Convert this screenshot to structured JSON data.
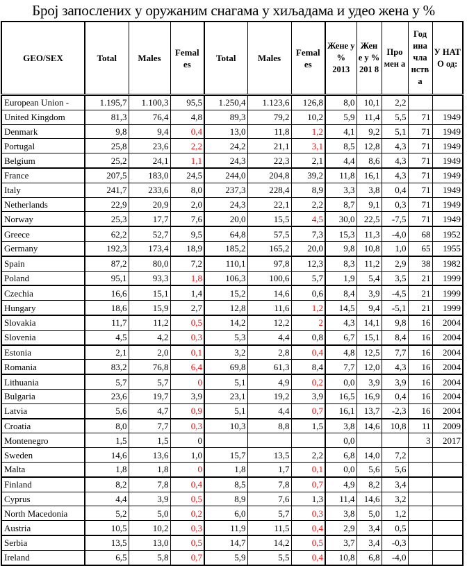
{
  "title": "Број запослених у оружаним снагама у хиљадама и удео жена у %",
  "highlight_color": "#ff0000",
  "columns": [
    "GEO/SEX",
    "Total",
    "Males",
    "Femal es",
    "Total",
    "Males",
    "Femal es",
    "Жене у % 2013",
    "Жен е у % 201 8",
    "Про мен а",
    "Год ина чла нств а",
    "У НАТ О од:"
  ],
  "rows": [
    {
      "cells": [
        "European Union -",
        "1.195,7",
        "1.100,3",
        "95,5",
        "1.250,4",
        "1.123,6",
        "126,8",
        "8,0",
        "10,1",
        "2,2",
        "",
        ""
      ],
      "red": []
    },
    {
      "cells": [
        "United Kingdom",
        "81,3",
        "76,4",
        "4,8",
        "89,3",
        "79,2",
        "10,2",
        "5,9",
        "11,4",
        "5,5",
        "71",
        "1949"
      ],
      "red": []
    },
    {
      "cells": [
        "Denmark",
        "9,8",
        "9,4",
        "0,4",
        "13,0",
        "11,8",
        "1,2",
        "4,1",
        "9,2",
        "5,1",
        "71",
        "1949"
      ],
      "red": [
        3,
        6
      ]
    },
    {
      "cells": [
        "Portugal",
        "25,8",
        "23,6",
        "2,2",
        "24,2",
        "21,1",
        "3,1",
        "8,5",
        "12,8",
        "4,3",
        "71",
        "1949"
      ],
      "red": [
        3,
        6
      ]
    },
    {
      "cells": [
        "Belgium",
        "25,2",
        "24,1",
        "1,1",
        "24,3",
        "22,3",
        "2,1",
        "4,4",
        "8,6",
        "4,3",
        "71",
        "1949"
      ],
      "red": [
        3
      ]
    },
    {
      "cells": [
        "France",
        "207,5",
        "183,0",
        "24,5",
        "244,0",
        "204,8",
        "39,2",
        "11,8",
        "16,1",
        "4,3",
        "71",
        "1949"
      ],
      "red": []
    },
    {
      "cells": [
        "Italy",
        "241,7",
        "233,6",
        "8,0",
        "237,3",
        "228,4",
        "8,9",
        "3,3",
        "3,8",
        "0,4",
        "71",
        "1949"
      ],
      "red": []
    },
    {
      "cells": [
        "Netherlands",
        "22,9",
        "20,9",
        "2,0",
        "24,3",
        "22,1",
        "2,2",
        "8,7",
        "9,1",
        "0,3",
        "71",
        "1949"
      ],
      "red": []
    },
    {
      "cells": [
        "Norway",
        "25,3",
        "17,7",
        "7,6",
        "20,0",
        "15,5",
        "4,5",
        "30,0",
        "22,5",
        "-7,5",
        "71",
        "1949"
      ],
      "red": [
        6
      ]
    },
    {
      "cells": [
        "Greece",
        "62,2",
        "52,7",
        "9,5",
        "64,8",
        "57,5",
        "7,3",
        "15,3",
        "11,3",
        "-4,0",
        "68",
        "1952"
      ],
      "red": []
    },
    {
      "cells": [
        "Germany",
        "192,3",
        "173,4",
        "18,9",
        "185,2",
        "165,2",
        "20,0",
        "9,8",
        "10,8",
        "1,0",
        "65",
        "1955"
      ],
      "red": []
    },
    {
      "cells": [
        "Spain",
        "87,2",
        "80,0",
        "7,2",
        "110,1",
        "97,8",
        "12,3",
        "8,3",
        "11,2",
        "2,9",
        "38",
        "1982"
      ],
      "red": []
    },
    {
      "cells": [
        "Poland",
        "95,1",
        "93,3",
        "1,8",
        "106,3",
        "100,6",
        "5,7",
        "1,9",
        "5,4",
        "3,5",
        "21",
        "1999"
      ],
      "red": [
        3
      ]
    },
    {
      "cells": [
        "Czechia",
        "16,6",
        "15,1",
        "1,4",
        "15,2",
        "14,6",
        "0,6",
        "8,4",
        "3,9",
        "-4,5",
        "21",
        "1999"
      ],
      "red": []
    },
    {
      "cells": [
        "Hungary",
        "18,6",
        "15,9",
        "2,7",
        "12,8",
        "11,6",
        "1,2",
        "14,5",
        "9,4",
        "-5,1",
        "21",
        "1999"
      ],
      "red": [
        6
      ]
    },
    {
      "cells": [
        "Slovakia",
        "11,7",
        "11,2",
        "0,5",
        "14,2",
        "12,2",
        "2",
        "4,3",
        "14,1",
        "9,8",
        "16",
        "2004"
      ],
      "red": [
        3,
        6
      ]
    },
    {
      "cells": [
        "Slovenia",
        "4,5",
        "4,2",
        "0,3",
        "5,3",
        "4,4",
        "0,8",
        "6,7",
        "15,1",
        "8,4",
        "16",
        "2004"
      ],
      "red": [
        3
      ]
    },
    {
      "cells": [
        "Estonia",
        "2,1",
        "2,0",
        "0,1",
        "3,2",
        "2,8",
        "0,4",
        "4,8",
        "12,5",
        "7,7",
        "16",
        "2004"
      ],
      "red": [
        3,
        6
      ]
    },
    {
      "cells": [
        "Romania",
        "83,2",
        "76,8",
        "6,4",
        "69,8",
        "61,3",
        "8,4",
        "7,7",
        "12,0",
        "4,3",
        "16",
        "2004"
      ],
      "red": [
        3
      ]
    },
    {
      "cells": [
        "Lithuania",
        "5,7",
        "5,7",
        "0",
        "5,1",
        "4,9",
        "0,2",
        "0,0",
        "3,9",
        "3,9",
        "16",
        "2004"
      ],
      "red": [
        3,
        6
      ]
    },
    {
      "cells": [
        "Bulgaria",
        "23,6",
        "19,7",
        "3,9",
        "23,1",
        "19,2",
        "3,9",
        "16,5",
        "16,9",
        "0,4",
        "16",
        "2004"
      ],
      "red": []
    },
    {
      "cells": [
        "Latvia",
        "5,6",
        "4,7",
        "0,9",
        "5,1",
        "4,4",
        "0,7",
        "16,1",
        "13,7",
        "-2,3",
        "16",
        "2004"
      ],
      "red": [
        3,
        6
      ]
    },
    {
      "cells": [
        "Croatia",
        "8,0",
        "7,7",
        "0,3",
        "10,3",
        "8,8",
        "1,5",
        "3,8",
        "14,6",
        "10,8",
        "11",
        "2009"
      ],
      "red": [
        3
      ]
    },
    {
      "cells": [
        "Montenegro",
        "1,5",
        "1,5",
        "0",
        "",
        "",
        "",
        "0,0",
        "",
        "",
        "3",
        "2017"
      ],
      "red": []
    },
    {
      "cells": [
        "Sweden",
        "14,6",
        "13,6",
        "1,0",
        "15,7",
        "13,5",
        "2,2",
        "6,8",
        "14,0",
        "7,2",
        "",
        ""
      ],
      "red": []
    },
    {
      "cells": [
        "Malta",
        "1,8",
        "1,8",
        "0",
        "1,8",
        "1,7",
        "0,1",
        "0,0",
        "5,6",
        "5,6",
        "",
        ""
      ],
      "red": [
        3,
        6
      ]
    },
    {
      "cells": [
        "Finland",
        "8,2",
        "7,8",
        "0,4",
        "8,5",
        "7,8",
        "0,7",
        "4,9",
        "8,2",
        "3,4",
        "",
        ""
      ],
      "red": [
        3,
        6
      ]
    },
    {
      "cells": [
        "Cyprus",
        "4,4",
        "3,9",
        "0,5",
        "8,9",
        "7,6",
        "1,3",
        "11,4",
        "14,6",
        "3,2",
        "",
        ""
      ],
      "red": [
        3
      ]
    },
    {
      "cells": [
        "North Macedonia",
        "5,2",
        "5,0",
        "0,2",
        "6,0",
        "5,7",
        "0,3",
        "3,8",
        "5,0",
        "1,2",
        "",
        ""
      ],
      "red": [
        3,
        6
      ]
    },
    {
      "cells": [
        "Austria",
        "10,5",
        "10,2",
        "0,3",
        "11,9",
        "11,5",
        "0,4",
        "2,9",
        "3,4",
        "0,5",
        "",
        ""
      ],
      "red": [
        3,
        6
      ]
    },
    {
      "cells": [
        "Serbia",
        "13,5",
        "13,0",
        "0,5",
        "14,7",
        "14,2",
        "0,5",
        "3,7",
        "3,4",
        "-0,3",
        "",
        ""
      ],
      "red": [
        3,
        6
      ]
    },
    {
      "cells": [
        "Ireland",
        "6,5",
        "5,8",
        "0,7",
        "5,9",
        "5,5",
        "0,4",
        "10,8",
        "6,8",
        "-4,0",
        "",
        ""
      ],
      "red": [
        3,
        6
      ]
    }
  ]
}
